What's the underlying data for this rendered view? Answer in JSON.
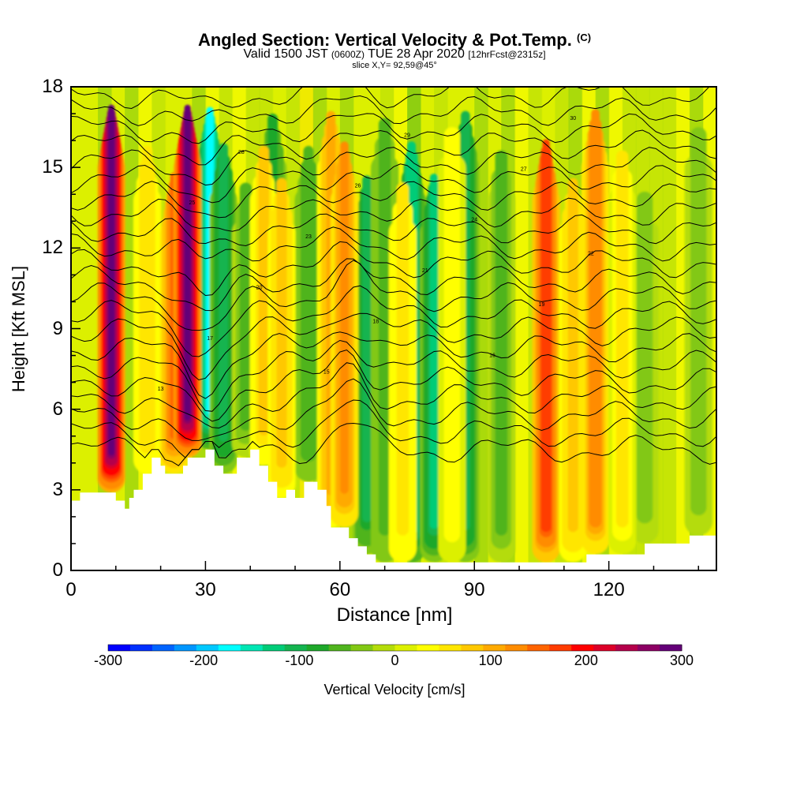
{
  "header": {
    "title": "Angled Section: Vertical Velocity & Pot.Temp.",
    "title_suffix": "(C)",
    "valid_prefix": "Valid 1500 JST",
    "valid_utc": "(0600Z)",
    "valid_date": "TUE 28 Apr 2020",
    "forecast": "[12hrFcst@2315z]",
    "slice": "slice X,Y= 92,59@45°"
  },
  "chart_data": {
    "type": "heatmap",
    "xlabel": "Distance [nm]",
    "ylabel": "Height [Kft MSL]",
    "xlim": [
      0,
      144
    ],
    "ylim": [
      0,
      18
    ],
    "x_ticks": [
      "0",
      "30",
      "60",
      "90",
      "120"
    ],
    "y_ticks": [
      "0",
      "3",
      "6",
      "9",
      "12",
      "15",
      "18"
    ],
    "colorbar": {
      "label": "Vertical Velocity [cm/s]",
      "range": [
        -300,
        300
      ],
      "ticks": [
        "-300",
        "-200",
        "-100",
        "0",
        "100",
        "200",
        "300"
      ],
      "colors": [
        "#0000ff",
        "#0030ff",
        "#0064ff",
        "#0096ff",
        "#00c8ff",
        "#00ffff",
        "#00e6b4",
        "#00cc78",
        "#14b450",
        "#1ea82a",
        "#50b41e",
        "#82c814",
        "#b4dc0a",
        "#dcf000",
        "#ffff00",
        "#ffe600",
        "#ffc800",
        "#ffaa00",
        "#ff8c00",
        "#ff6400",
        "#ff3c00",
        "#ff0000",
        "#dc0028",
        "#b4004b",
        "#8c0064",
        "#640078"
      ]
    },
    "terrain_heights_kft": [
      [
        0,
        2.6
      ],
      [
        2,
        2.9
      ],
      [
        10,
        2.6
      ],
      [
        12,
        2.3
      ],
      [
        13,
        2.7
      ],
      [
        14,
        3.0
      ],
      [
        16,
        3.6
      ],
      [
        18,
        4.2
      ],
      [
        20,
        3.9
      ],
      [
        21,
        3.6
      ],
      [
        25,
        3.9
      ],
      [
        26,
        4.2
      ],
      [
        30,
        4.5
      ],
      [
        32,
        3.9
      ],
      [
        34,
        3.6
      ],
      [
        37,
        4.2
      ],
      [
        40,
        4.5
      ],
      [
        42,
        3.9
      ],
      [
        44,
        3.3
      ],
      [
        46,
        2.7
      ],
      [
        48,
        3.0
      ],
      [
        50,
        2.7
      ],
      [
        52,
        3.3
      ],
      [
        55,
        3.0
      ],
      [
        57,
        2.4
      ],
      [
        58,
        1.6
      ],
      [
        62,
        1.2
      ],
      [
        64,
        0.9
      ],
      [
        66,
        0.6
      ],
      [
        68,
        0.3
      ],
      [
        80,
        0.3
      ],
      [
        100,
        0.3
      ],
      [
        114,
        0.3
      ],
      [
        115,
        0.6
      ],
      [
        128,
        1.0
      ],
      [
        138,
        1.3
      ],
      [
        144,
        1.3
      ]
    ],
    "updraft_columns": [
      {
        "x": 9,
        "w": 300
      },
      {
        "x": 17,
        "w": 80
      },
      {
        "x": 23,
        "w": 160
      },
      {
        "x": 26,
        "w": 300
      },
      {
        "x": 43,
        "w": 90
      },
      {
        "x": 47,
        "w": 100
      },
      {
        "x": 58,
        "w": 120
      },
      {
        "x": 61,
        "w": 140
      },
      {
        "x": 74,
        "w": 70
      },
      {
        "x": 85,
        "w": 50
      },
      {
        "x": 106,
        "w": 200
      },
      {
        "x": 112,
        "w": 100
      },
      {
        "x": 117,
        "w": 150
      },
      {
        "x": 123,
        "w": 60
      }
    ],
    "downdraft_columns": [
      {
        "x": 31,
        "w": -180
      },
      {
        "x": 34,
        "w": -120
      },
      {
        "x": 39,
        "w": -60
      },
      {
        "x": 45,
        "w": -100
      },
      {
        "x": 53,
        "w": -80
      },
      {
        "x": 66,
        "w": -110
      },
      {
        "x": 70,
        "w": -70
      },
      {
        "x": 76,
        "w": -150
      },
      {
        "x": 81,
        "w": -130
      },
      {
        "x": 88,
        "w": -120
      },
      {
        "x": 96,
        "w": -60
      },
      {
        "x": 128,
        "w": -50
      },
      {
        "x": 140,
        "w": -40
      }
    ],
    "pot_temp_isentropes": {
      "contour_count": 22,
      "labels": [
        "13",
        "15",
        "16",
        "17",
        "18",
        "19",
        "20",
        "21",
        "22",
        "23",
        "24",
        "25",
        "26",
        "27",
        "28",
        "29",
        "30"
      ]
    }
  }
}
